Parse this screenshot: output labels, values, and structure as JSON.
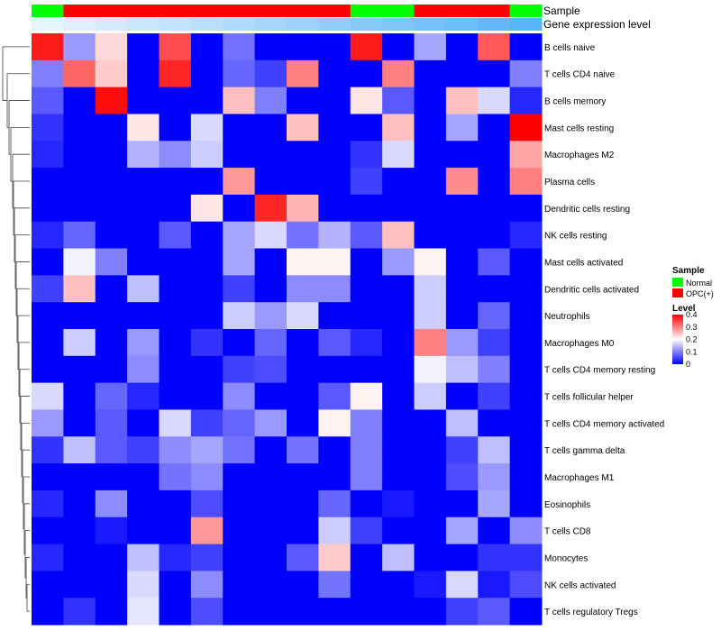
{
  "colors": {
    "normal": "#00ff00",
    "opc": "#ff0000",
    "low": "#0000ff",
    "mid": "#ffffff",
    "high": "#ff0000",
    "expr_light": "#e8f4fc",
    "expr_dark": "#5ab4f8",
    "dendrogram": "#404040"
  },
  "annotations": {
    "sample_label": "Sample",
    "expression_label": "Gene expression level"
  },
  "legend": {
    "sample_title": "Sample",
    "sample_items": [
      {
        "label": "Normal",
        "group": "normal"
      },
      {
        "label": "OPC(+)",
        "group": "opc"
      }
    ],
    "level_title": "Level",
    "level_ticks": [
      "0.4",
      "0.3",
      "0.2",
      "0.1",
      "0"
    ]
  },
  "chart_data": {
    "type": "heatmap",
    "rows": [
      "B cells naive",
      "T cells CD4 naive",
      "B cells memory",
      "Mast cells resting",
      "Macrophages M2",
      "Plasma cells",
      "Dendritic cells resting",
      "NK cells resting",
      "Mast cells activated",
      "Dendritic cells activated",
      "Neutrophils",
      "Macrophages M0",
      "T cells CD4 memory resting",
      "T cells follicular helper",
      "T cells CD4 memory activated",
      "T cells gamma delta",
      "Macrophages M1",
      "Eosinophils",
      "T cells CD8",
      "Monocytes",
      "NK cells activated",
      "T cells regulatory  Tregs"
    ],
    "sample_groups": [
      "normal",
      "opc",
      "opc",
      "opc",
      "opc",
      "opc",
      "opc",
      "opc",
      "opc",
      "opc",
      "normal",
      "normal",
      "opc",
      "opc",
      "opc",
      "normal"
    ],
    "expression_levels": [
      0.0,
      0.05,
      0.1,
      0.15,
      0.2,
      0.25,
      0.3,
      0.35,
      0.4,
      0.45,
      0.5,
      0.55,
      0.6,
      0.65,
      0.7,
      0.75
    ],
    "level_range": [
      0,
      0.4
    ],
    "values": [
      [
        0.38,
        0.12,
        0.23,
        0.0,
        0.34,
        0.0,
        0.09,
        0.0,
        0.0,
        0.0,
        0.38,
        0.0,
        0.13,
        0.0,
        0.33,
        0.0
      ],
      [
        0.1,
        0.32,
        0.24,
        0.0,
        0.37,
        0.0,
        0.08,
        0.05,
        0.3,
        0.0,
        0.0,
        0.3,
        0.0,
        0.0,
        0.0,
        0.1
      ],
      [
        0.07,
        0.0,
        0.39,
        0.0,
        0.0,
        0.0,
        0.25,
        0.1,
        0.0,
        0.0,
        0.22,
        0.07,
        0.0,
        0.25,
        0.17,
        0.03
      ],
      [
        0.04,
        0.0,
        0.0,
        0.22,
        0.0,
        0.17,
        0.0,
        0.0,
        0.25,
        0.0,
        0.0,
        0.25,
        0.0,
        0.13,
        0.0,
        0.4
      ],
      [
        0.03,
        0.0,
        0.0,
        0.14,
        0.11,
        0.16,
        0.0,
        0.0,
        0.0,
        0.0,
        0.04,
        0.17,
        0.0,
        0.0,
        0.0,
        0.27
      ],
      [
        0.0,
        0.0,
        0.0,
        0.0,
        0.0,
        0.0,
        0.28,
        0.0,
        0.0,
        0.0,
        0.05,
        0.0,
        0.0,
        0.29,
        0.0,
        0.3
      ],
      [
        0.0,
        0.0,
        0.0,
        0.0,
        0.0,
        0.22,
        0.0,
        0.37,
        0.26,
        0.0,
        0.0,
        0.0,
        0.0,
        0.0,
        0.0,
        0.0
      ],
      [
        0.03,
        0.08,
        0.0,
        0.0,
        0.07,
        0.0,
        0.13,
        0.17,
        0.09,
        0.14,
        0.07,
        0.25,
        0.0,
        0.0,
        0.0,
        0.03
      ],
      [
        0.0,
        0.19,
        0.1,
        0.0,
        0.0,
        0.0,
        0.13,
        0.0,
        0.21,
        0.21,
        0.0,
        0.12,
        0.21,
        0.0,
        0.07,
        0.0
      ],
      [
        0.05,
        0.25,
        0.0,
        0.15,
        0.0,
        0.0,
        0.05,
        0.0,
        0.11,
        0.11,
        0.0,
        0.0,
        0.16,
        0.0,
        0.0,
        0.0
      ],
      [
        0.0,
        0.0,
        0.0,
        0.0,
        0.0,
        0.0,
        0.16,
        0.12,
        0.17,
        0.0,
        0.0,
        0.0,
        0.16,
        0.0,
        0.08,
        0.0
      ],
      [
        0.0,
        0.16,
        0.0,
        0.12,
        0.0,
        0.04,
        0.0,
        0.08,
        0.0,
        0.07,
        0.03,
        0.0,
        0.3,
        0.12,
        0.05,
        0.0
      ],
      [
        0.0,
        0.0,
        0.0,
        0.11,
        0.0,
        0.0,
        0.05,
        0.06,
        0.0,
        0.0,
        0.0,
        0.0,
        0.19,
        0.15,
        0.1,
        0.0
      ],
      [
        0.17,
        0.0,
        0.08,
        0.03,
        0.0,
        0.0,
        0.11,
        0.0,
        0.0,
        0.07,
        0.21,
        0.0,
        0.16,
        0.0,
        0.05,
        0.0
      ],
      [
        0.12,
        0.0,
        0.07,
        0.0,
        0.17,
        0.05,
        0.08,
        0.12,
        0.0,
        0.21,
        0.1,
        0.0,
        0.0,
        0.15,
        0.0,
        0.0
      ],
      [
        0.04,
        0.15,
        0.07,
        0.05,
        0.11,
        0.13,
        0.09,
        0.0,
        0.09,
        0.0,
        0.1,
        0.0,
        0.0,
        0.05,
        0.15,
        0.0
      ],
      [
        0.0,
        0.0,
        0.0,
        0.0,
        0.09,
        0.11,
        0.0,
        0.0,
        0.0,
        0.0,
        0.1,
        0.0,
        0.0,
        0.06,
        0.12,
        0.0
      ],
      [
        0.03,
        0.0,
        0.11,
        0.0,
        0.0,
        0.06,
        0.0,
        0.0,
        0.0,
        0.08,
        0.0,
        0.02,
        0.0,
        0.0,
        0.13,
        0.0
      ],
      [
        0.0,
        0.0,
        0.02,
        0.0,
        0.0,
        0.28,
        0.0,
        0.0,
        0.0,
        0.16,
        0.05,
        0.0,
        0.0,
        0.13,
        0.0,
        0.11
      ],
      [
        0.03,
        0.0,
        0.0,
        0.15,
        0.03,
        0.05,
        0.0,
        0.0,
        0.07,
        0.24,
        0.0,
        0.15,
        0.0,
        0.0,
        0.04,
        0.04
      ],
      [
        0.0,
        0.0,
        0.0,
        0.17,
        0.0,
        0.11,
        0.0,
        0.0,
        0.0,
        0.09,
        0.0,
        0.0,
        0.02,
        0.17,
        0.02,
        0.06
      ],
      [
        0.0,
        0.04,
        0.0,
        0.18,
        0.0,
        0.06,
        0.0,
        0.0,
        0.0,
        0.0,
        0.0,
        0.0,
        0.0,
        0.05,
        0.07,
        0.0
      ]
    ]
  }
}
